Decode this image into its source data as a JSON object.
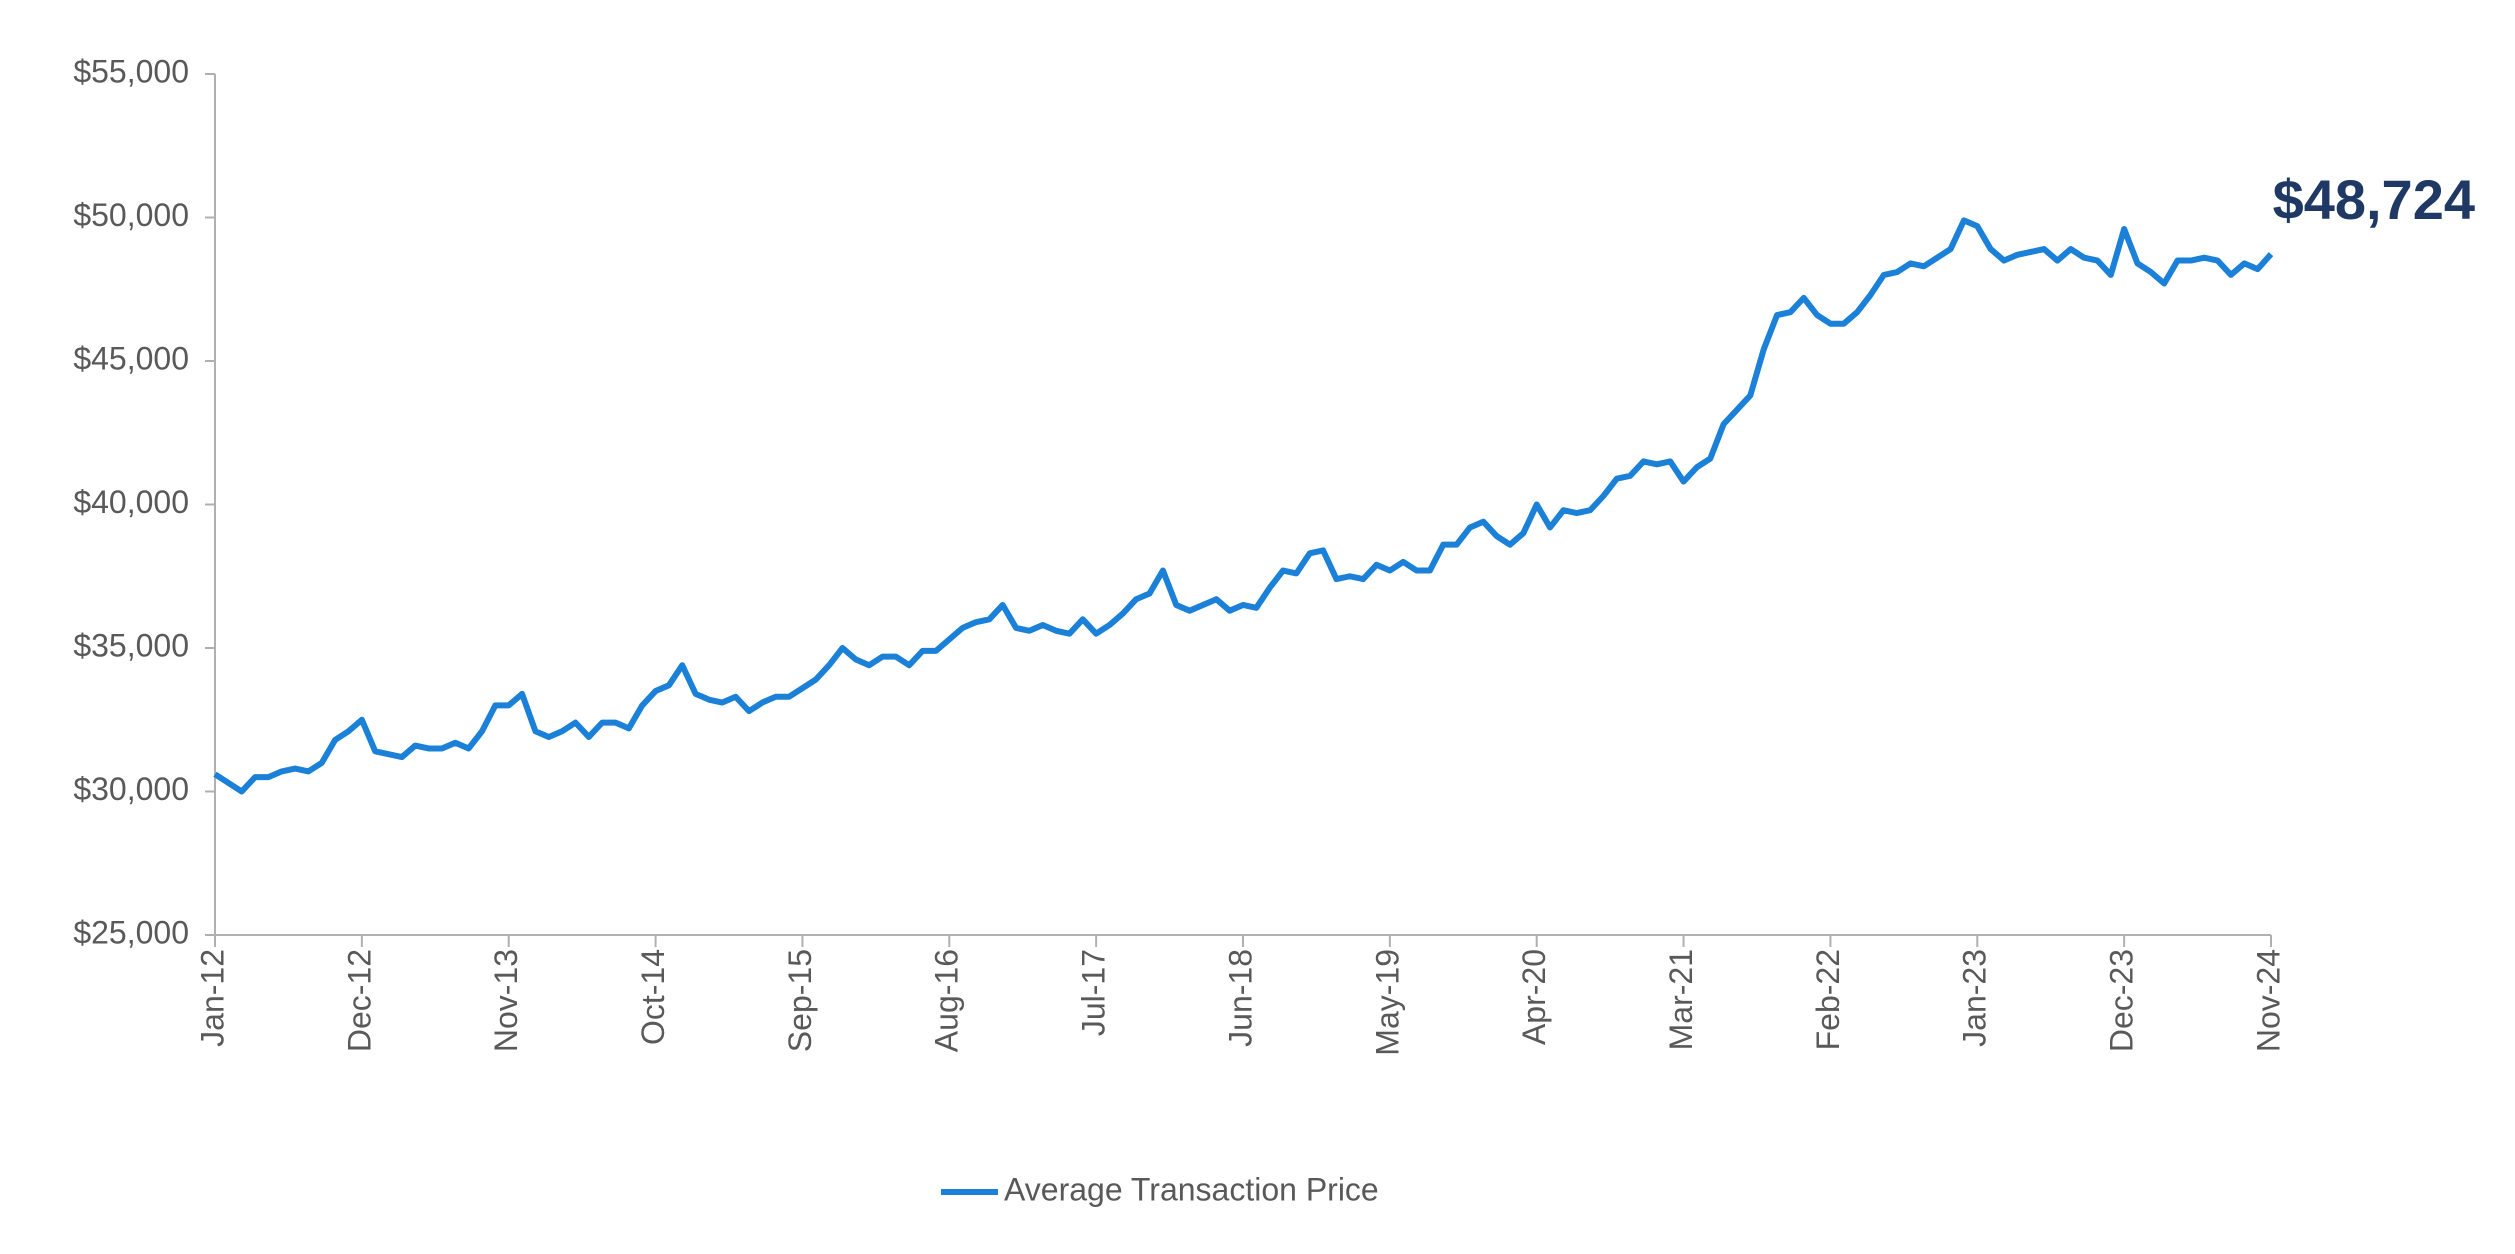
{
  "chart_data": {
    "type": "line",
    "categories": [
      "Jan-12",
      null,
      null,
      null,
      null,
      null,
      null,
      null,
      null,
      null,
      null,
      "Dec-12",
      null,
      null,
      null,
      null,
      null,
      null,
      null,
      null,
      null,
      null,
      "Nov-13",
      null,
      null,
      null,
      null,
      null,
      null,
      null,
      null,
      null,
      null,
      "Oct-14",
      null,
      null,
      null,
      null,
      null,
      null,
      null,
      null,
      null,
      null,
      "Sep-15",
      null,
      null,
      null,
      null,
      null,
      null,
      null,
      null,
      null,
      null,
      "Aug-16",
      null,
      null,
      null,
      null,
      null,
      null,
      null,
      null,
      null,
      null,
      "Jul-17",
      null,
      null,
      null,
      null,
      null,
      null,
      null,
      null,
      null,
      null,
      "Jun-18",
      null,
      null,
      null,
      null,
      null,
      null,
      null,
      null,
      null,
      null,
      "May-19",
      null,
      null,
      null,
      null,
      null,
      null,
      null,
      null,
      null,
      null,
      "Apr-20",
      null,
      null,
      null,
      null,
      null,
      null,
      null,
      null,
      null,
      null,
      "Mar-21",
      null,
      null,
      null,
      null,
      null,
      null,
      null,
      null,
      null,
      null,
      "Feb-22",
      null,
      null,
      null,
      null,
      null,
      null,
      null,
      null,
      null,
      null,
      "Jan-23",
      null,
      null,
      null,
      null,
      null,
      null,
      null,
      null,
      null,
      null,
      "Dec-23",
      null,
      null,
      null,
      null,
      null,
      null,
      null,
      null,
      null,
      null,
      "Nov-24"
    ],
    "series": [
      {
        "name": "Average Transaction Price",
        "color": "#1b80d8",
        "values": [
          30600,
          30300,
          30000,
          30500,
          30500,
          30700,
          30800,
          30700,
          31000,
          31800,
          32100,
          32500,
          31400,
          31300,
          31200,
          31600,
          31500,
          31500,
          31700,
          31500,
          32100,
          33000,
          33000,
          33400,
          32100,
          31900,
          32100,
          32400,
          31900,
          32400,
          32400,
          32200,
          33000,
          33500,
          33700,
          34400,
          33400,
          33200,
          33100,
          33300,
          32800,
          33100,
          33300,
          33300,
          33600,
          33900,
          34400,
          35000,
          34600,
          34400,
          34700,
          34700,
          34400,
          34900,
          34900,
          35300,
          35700,
          35900,
          36000,
          36500,
          35700,
          35600,
          35800,
          35600,
          35500,
          36000,
          35500,
          35800,
          36200,
          36700,
          36900,
          37700,
          36500,
          36300,
          36500,
          36700,
          36300,
          36500,
          36400,
          37100,
          37700,
          37600,
          38300,
          38400,
          37400,
          37500,
          37400,
          37900,
          37700,
          38000,
          37700,
          37700,
          38600,
          38600,
          39200,
          39400,
          38900,
          38600,
          39000,
          40000,
          39200,
          39800,
          39700,
          39800,
          40300,
          40900,
          41000,
          41500,
          41400,
          41500,
          40800,
          41300,
          41600,
          42800,
          43300,
          43800,
          45400,
          46600,
          46700,
          47200,
          46600,
          46300,
          46300,
          46700,
          47300,
          48000,
          48100,
          48400,
          48300,
          48600,
          48900,
          49900,
          49700,
          48900,
          48500,
          48700,
          48800,
          48900,
          48500,
          48900,
          48600,
          48500,
          48000,
          49600,
          48400,
          48100,
          47700,
          48500,
          48500,
          48600,
          48500,
          48000,
          48400,
          48200,
          48724
        ]
      }
    ],
    "annotation": "$48,724",
    "ylim": [
      25000,
      55000
    ],
    "yticks": [
      {
        "value": 25000,
        "label": "$25,000"
      },
      {
        "value": 30000,
        "label": "$30,000"
      },
      {
        "value": 35000,
        "label": "$35,000"
      },
      {
        "value": 40000,
        "label": "$40,000"
      },
      {
        "value": 45000,
        "label": "$45,000"
      },
      {
        "value": 50000,
        "label": "$50,000"
      },
      {
        "value": 55000,
        "label": "$55,000"
      }
    ],
    "grid": false,
    "legend": "bottom",
    "annotation_color": "#1f3864"
  }
}
